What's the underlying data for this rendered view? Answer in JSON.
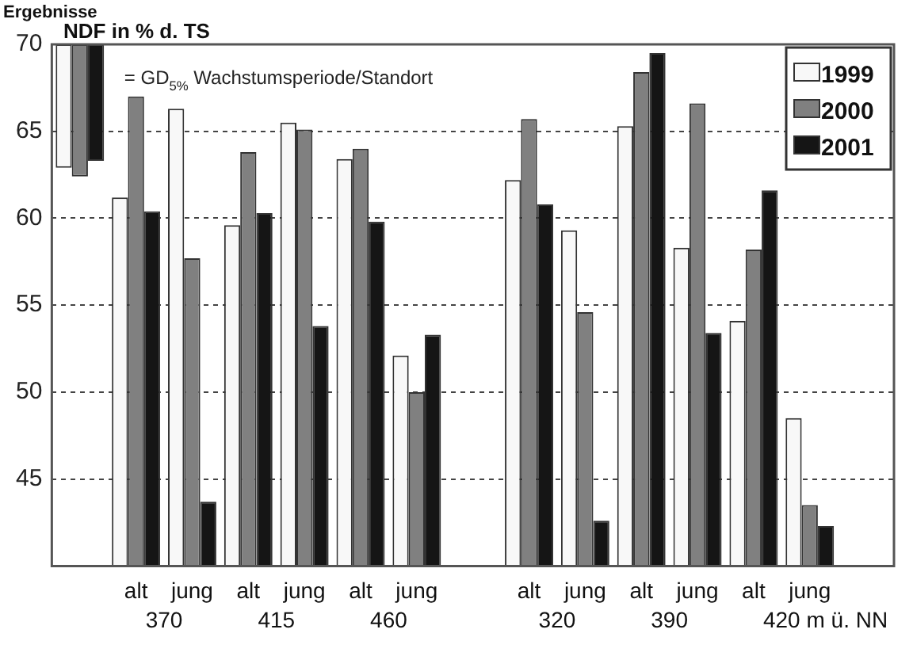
{
  "chart_data": {
    "type": "bar",
    "title": "Ergebnisse",
    "ylabel": "NDF in % d. TS",
    "categories": [
      null,
      "alt",
      "jung",
      "alt",
      "jung",
      "alt",
      "jung",
      null,
      "alt",
      "jung",
      "alt",
      "jung",
      "alt",
      "jung",
      null
    ],
    "series": [
      {
        "name": "1999",
        "color": "#f8f8f8",
        "values": [
          7.1,
          61.2,
          66.3,
          59.6,
          65.5,
          63.4,
          52.1,
          null,
          62.2,
          59.3,
          65.3,
          58.3,
          54.1,
          48.5,
          null
        ],
        "base": [
          62.9,
          null,
          null,
          null,
          null,
          null,
          null,
          null,
          null,
          null,
          null,
          null,
          null,
          null,
          null
        ]
      },
      {
        "name": "2000",
        "color": "#808080",
        "values": [
          7.6,
          67.0,
          57.7,
          63.8,
          65.1,
          64.0,
          50.0,
          null,
          65.7,
          54.6,
          68.4,
          66.6,
          58.2,
          43.5,
          null
        ],
        "base": [
          62.4,
          null,
          null,
          null,
          null,
          null,
          null,
          null,
          null,
          null,
          null,
          null,
          null,
          null,
          null
        ]
      },
      {
        "name": "2001",
        "color": "#151515",
        "values": [
          6.7,
          60.4,
          43.7,
          60.3,
          53.8,
          59.8,
          53.3,
          null,
          60.8,
          42.6,
          69.5,
          53.4,
          61.6,
          42.3,
          null
        ],
        "base": [
          63.3,
          null,
          null,
          null,
          null,
          null,
          null,
          null,
          null,
          null,
          null,
          null,
          null,
          null,
          null
        ]
      }
    ],
    "ylim": [
      40,
      70
    ],
    "yticks": [
      45,
      50,
      55,
      60,
      65,
      70
    ],
    "grid": "y",
    "legend": "top right",
    "annotations": [
      "= GD$_{5%}$ Wachstumsperiode/Standort",
      "370",
      "415",
      "460",
      "320",
      "390",
      "420 m ü. NN"
    ]
  }
}
